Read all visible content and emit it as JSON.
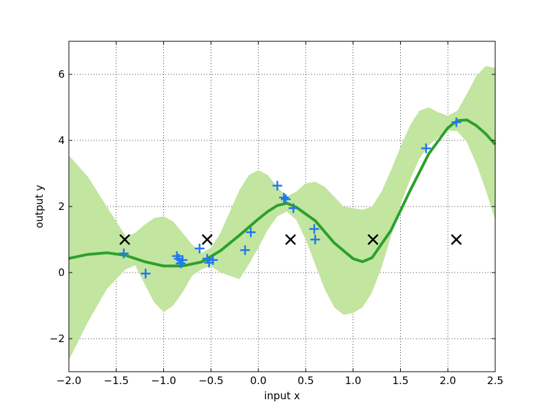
{
  "chart_data": {
    "type": "line",
    "xlabel": "input x",
    "ylabel": "output y",
    "xlim": [
      -2.0,
      2.5
    ],
    "ylim": [
      -3,
      7
    ],
    "xticks": [
      -2.0,
      -1.5,
      -1.0,
      -0.5,
      0.0,
      0.5,
      1.0,
      1.5,
      2.0,
      2.5
    ],
    "xtick_labels": [
      "−2.0",
      "−1.5",
      "−1.0",
      "−0.5",
      "0.0",
      "0.5",
      "1.0",
      "1.5",
      "2.0",
      "2.5"
    ],
    "yticks": [
      -2,
      0,
      2,
      4,
      6
    ],
    "ytick_labels": [
      "−2",
      "0",
      "2",
      "4",
      "6"
    ],
    "grid": true,
    "colors": {
      "mean": "#2ca02c",
      "band": "#c2e5a0",
      "observations": "#1f78f0",
      "inducing": "#000000"
    },
    "mean": {
      "x": [
        -2.0,
        -1.8,
        -1.6,
        -1.4,
        -1.2,
        -1.0,
        -0.8,
        -0.6,
        -0.4,
        -0.2,
        0.0,
        0.1,
        0.2,
        0.3,
        0.4,
        0.6,
        0.8,
        1.0,
        1.1,
        1.2,
        1.4,
        1.6,
        1.8,
        2.0,
        2.1,
        2.2,
        2.3,
        2.4,
        2.5
      ],
      "y": [
        0.43,
        0.55,
        0.6,
        0.52,
        0.33,
        0.2,
        0.2,
        0.32,
        0.66,
        1.13,
        1.62,
        1.85,
        2.03,
        2.1,
        1.98,
        1.57,
        0.9,
        0.42,
        0.33,
        0.45,
        1.28,
        2.47,
        3.6,
        4.38,
        4.6,
        4.62,
        4.45,
        4.2,
        3.88
      ]
    },
    "band": {
      "x": [
        -2.0,
        -1.8,
        -1.6,
        -1.4,
        -1.3,
        -1.2,
        -1.1,
        -1.0,
        -0.9,
        -0.8,
        -0.7,
        -0.6,
        -0.5,
        -0.4,
        -0.3,
        -0.2,
        -0.1,
        0.0,
        0.1,
        0.2,
        0.3,
        0.4,
        0.5,
        0.6,
        0.7,
        0.8,
        0.9,
        1.0,
        1.1,
        1.2,
        1.3,
        1.4,
        1.5,
        1.6,
        1.7,
        1.8,
        1.9,
        2.0,
        2.1,
        2.2,
        2.3,
        2.4,
        2.5
      ],
      "upper": [
        3.55,
        2.9,
        2.0,
        1.1,
        1.2,
        1.45,
        1.65,
        1.7,
        1.55,
        1.2,
        0.85,
        0.6,
        0.75,
        1.2,
        1.85,
        2.5,
        2.95,
        3.1,
        2.95,
        2.6,
        2.3,
        2.45,
        2.7,
        2.75,
        2.6,
        2.3,
        2.0,
        1.95,
        1.9,
        2.0,
        2.45,
        3.1,
        3.8,
        4.45,
        4.9,
        5.0,
        4.85,
        4.75,
        4.9,
        5.4,
        5.95,
        6.25,
        6.2
      ],
      "lower": [
        -2.65,
        -1.5,
        -0.5,
        0.1,
        0.22,
        -0.35,
        -0.9,
        -1.2,
        -1.0,
        -0.6,
        -0.1,
        0.1,
        0.2,
        0.0,
        -0.1,
        -0.2,
        0.25,
        0.75,
        1.3,
        1.7,
        1.85,
        1.6,
        1.0,
        0.25,
        -0.5,
        -1.05,
        -1.28,
        -1.22,
        -1.05,
        -0.6,
        0.15,
        1.1,
        2.05,
        2.8,
        3.45,
        3.85,
        4.1,
        4.3,
        4.28,
        3.95,
        3.3,
        2.5,
        1.6
      ]
    },
    "observations": {
      "x": [
        -1.42,
        -1.19,
        -0.86,
        -0.84,
        -0.82,
        -0.8,
        -0.62,
        -0.54,
        -0.52,
        -0.48,
        -0.14,
        -0.08,
        0.2,
        0.27,
        0.29,
        0.37,
        0.59,
        0.6,
        1.77,
        2.09
      ],
      "y": [
        0.58,
        -0.03,
        0.5,
        0.42,
        0.28,
        0.38,
        0.73,
        0.42,
        0.3,
        0.38,
        0.68,
        1.22,
        2.63,
        2.27,
        2.22,
        1.95,
        1.32,
        1.0,
        3.76,
        4.55
      ]
    },
    "inducing": {
      "x": [
        -1.41,
        -0.54,
        0.34,
        1.21,
        2.09
      ],
      "y": [
        1,
        1,
        1,
        1,
        1
      ]
    }
  }
}
